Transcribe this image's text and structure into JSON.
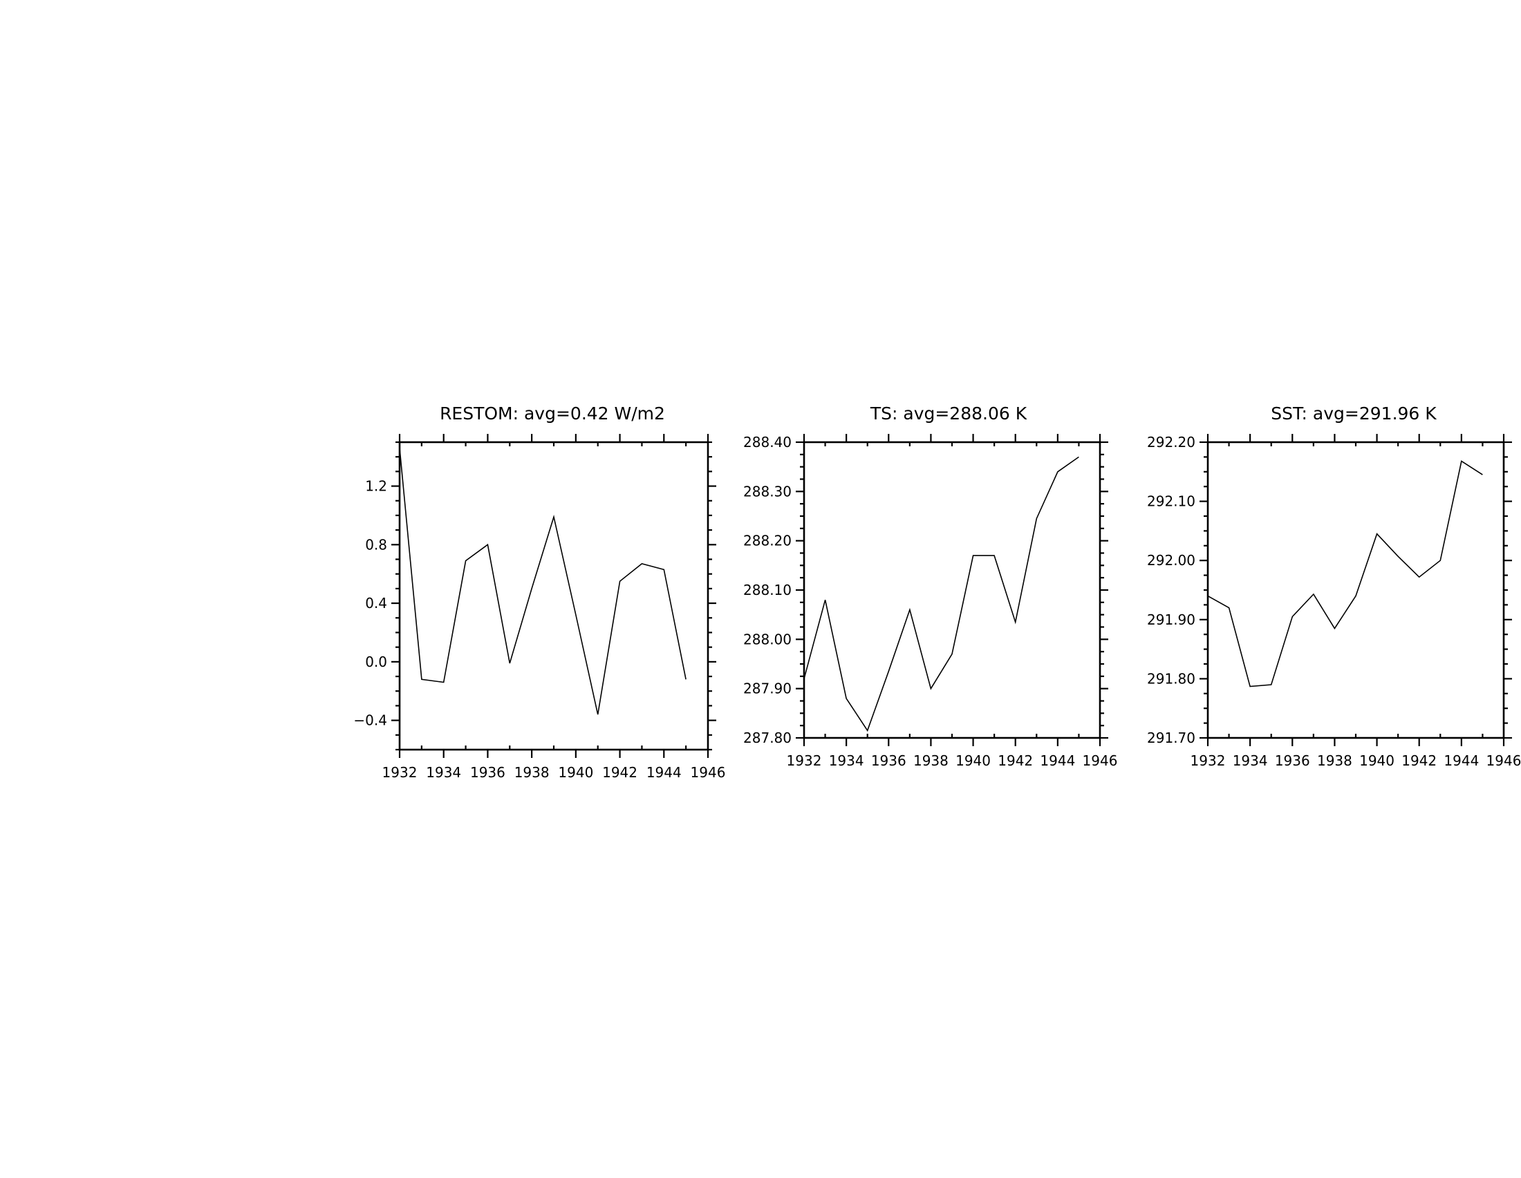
{
  "chart_data": [
    {
      "type": "line",
      "title": "RESTOM: avg=0.42 W/m2",
      "xlabel": "",
      "ylabel": "",
      "x": [
        1932,
        1933,
        1934,
        1935,
        1936,
        1937,
        1938,
        1939,
        1940,
        1941,
        1942,
        1943,
        1944,
        1945
      ],
      "series": [
        {
          "values": [
            1.46,
            -0.12,
            -0.14,
            0.69,
            0.8,
            -0.01,
            0.5,
            0.99,
            0.32,
            -0.36,
            0.55,
            0.67,
            0.63,
            -0.12
          ]
        }
      ],
      "xlim": [
        1932,
        1946
      ],
      "ylim": [
        -0.6,
        1.5
      ],
      "xticks": [
        1932,
        1934,
        1936,
        1938,
        1940,
        1942,
        1944,
        1946
      ],
      "xtick_labels": [
        "1932",
        "1934",
        "1936",
        "1938",
        "1940",
        "1942",
        "1944",
        "1946"
      ],
      "yticks": [
        -0.4,
        0.0,
        0.4,
        0.8,
        1.2
      ],
      "ytick_labels": [
        "−0.4",
        "0.0",
        "0.4",
        "0.8",
        "1.2"
      ],
      "grid": false,
      "line_color": "#000000"
    },
    {
      "type": "line",
      "title": "TS: avg=288.06 K",
      "xlabel": "",
      "ylabel": "",
      "x": [
        1932,
        1933,
        1934,
        1935,
        1936,
        1937,
        1938,
        1939,
        1940,
        1941,
        1942,
        1943,
        1944,
        1945
      ],
      "series": [
        {
          "values": [
            287.92,
            288.08,
            287.88,
            287.815,
            287.935,
            288.06,
            287.9,
            287.97,
            288.17,
            288.17,
            288.035,
            288.245,
            288.34,
            288.37
          ]
        }
      ],
      "xlim": [
        1932,
        1946
      ],
      "ylim": [
        287.8,
        288.4
      ],
      "xticks": [
        1932,
        1934,
        1936,
        1938,
        1940,
        1942,
        1944,
        1946
      ],
      "xtick_labels": [
        "1932",
        "1934",
        "1936",
        "1938",
        "1940",
        "1942",
        "1944",
        "1946"
      ],
      "yticks": [
        287.8,
        287.9,
        288.0,
        288.1,
        288.2,
        288.3,
        288.4
      ],
      "ytick_labels": [
        "287.80",
        "287.90",
        "288.00",
        "288.10",
        "288.20",
        "288.30",
        "288.40"
      ],
      "grid": false,
      "line_color": "#000000"
    },
    {
      "type": "line",
      "title": "SST: avg=291.96 K",
      "xlabel": "",
      "ylabel": "",
      "x": [
        1932,
        1933,
        1934,
        1935,
        1936,
        1937,
        1938,
        1939,
        1940,
        1941,
        1942,
        1943,
        1944,
        1945
      ],
      "series": [
        {
          "values": [
            291.94,
            291.92,
            291.787,
            291.79,
            291.905,
            291.943,
            291.885,
            291.94,
            292.045,
            292.007,
            291.972,
            292.0,
            292.168,
            292.145
          ]
        }
      ],
      "xlim": [
        1932,
        1946
      ],
      "ylim": [
        291.7,
        292.2
      ],
      "xticks": [
        1932,
        1934,
        1936,
        1938,
        1940,
        1942,
        1944,
        1946
      ],
      "xtick_labels": [
        "1932",
        "1934",
        "1936",
        "1938",
        "1940",
        "1942",
        "1944",
        "1946"
      ],
      "yticks": [
        291.7,
        291.8,
        291.9,
        292.0,
        292.1,
        292.2
      ],
      "ytick_labels": [
        "291.70",
        "291.80",
        "291.90",
        "292.00",
        "292.10",
        "292.20"
      ],
      "grid": false,
      "line_color": "#000000"
    }
  ]
}
